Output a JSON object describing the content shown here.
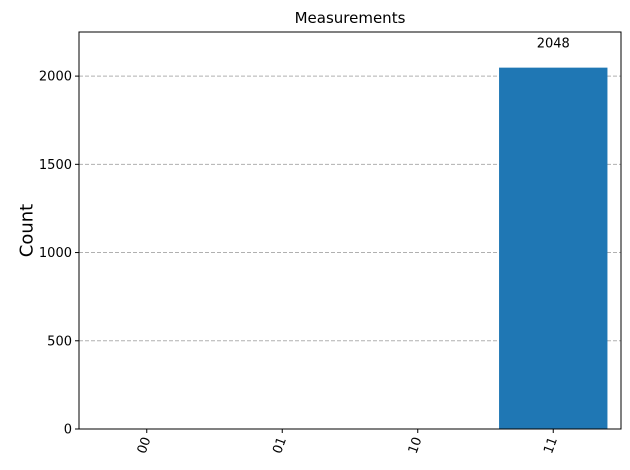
{
  "chart_data": {
    "type": "bar",
    "title": "Measurements",
    "xlabel": "",
    "ylabel": "Count",
    "categories": [
      "00",
      "01",
      "10",
      "11"
    ],
    "values": [
      0,
      0,
      0,
      2048
    ],
    "data_labels": [
      "",
      "",
      "",
      "2048"
    ],
    "ylim": [
      0,
      2250
    ],
    "yticks": [
      0,
      500,
      1000,
      1500,
      2000
    ],
    "ytick_labels": [
      "0",
      "500",
      "1000",
      "1500",
      "2000"
    ],
    "grid": "y-dashed",
    "legend": "none",
    "bar_color": "#1f77b4",
    "grid_color": "#b0b0b0"
  }
}
